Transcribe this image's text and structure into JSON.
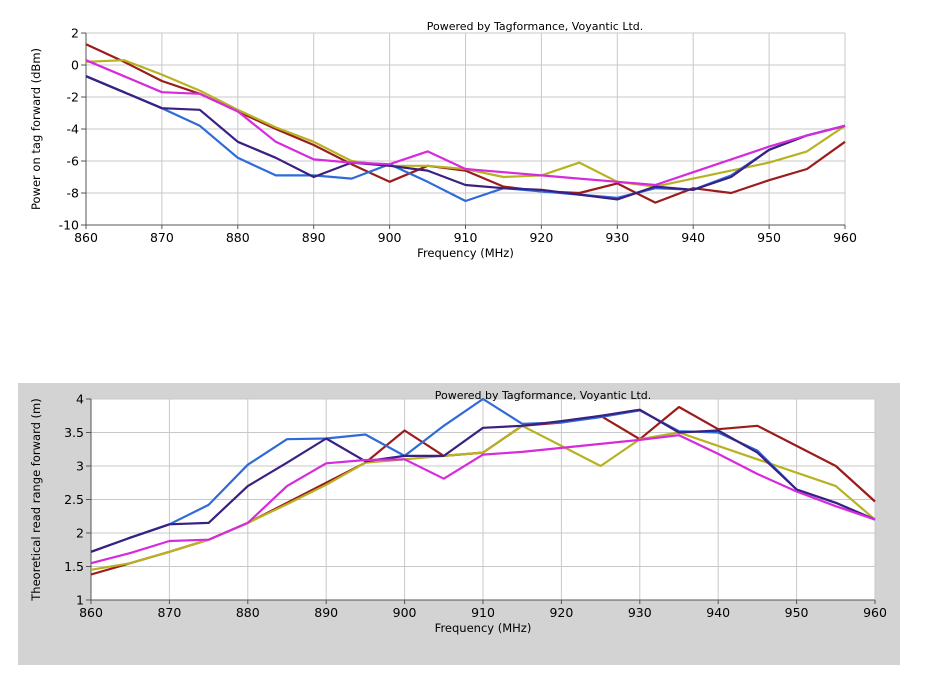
{
  "chart_data": [
    {
      "type": "line",
      "title": "Powered by Tagformance, Voyantic Ltd.",
      "xlabel": "Frequency (MHz)",
      "ylabel": "Power on tag forward (dBm)",
      "xlim": [
        860,
        960
      ],
      "ylim": [
        -10,
        2
      ],
      "xticks": [
        860,
        870,
        880,
        890,
        900,
        910,
        920,
        930,
        940,
        950,
        960
      ],
      "yticks": [
        -10,
        -8,
        -6,
        -4,
        -2,
        0,
        2
      ],
      "grid": true,
      "x": [
        860,
        865,
        870,
        875,
        880,
        885,
        890,
        895,
        900,
        905,
        910,
        915,
        920,
        925,
        930,
        935,
        940,
        945,
        950,
        955,
        960
      ],
      "series": [
        {
          "color": "#9c1c1c",
          "values": [
            1.3,
            0.2,
            -1.0,
            -1.8,
            -2.9,
            -4.0,
            -5.0,
            -6.2,
            -7.3,
            -6.3,
            -6.6,
            -7.6,
            -7.9,
            -8.0,
            -7.4,
            -8.6,
            -7.7,
            -8.0,
            -7.2,
            -6.5,
            -4.8
          ]
        },
        {
          "color": "#b8b220",
          "values": [
            0.2,
            0.3,
            -0.6,
            -1.6,
            -2.8,
            -3.9,
            -4.8,
            -6.0,
            -6.3,
            -6.3,
            -6.5,
            -7.0,
            -6.9,
            -6.1,
            -7.3,
            -7.6,
            -7.1,
            -6.6,
            -6.1,
            -5.4,
            -3.8
          ]
        },
        {
          "color": "#2f6bd8",
          "values": [
            -0.7,
            -1.7,
            -2.7,
            -3.8,
            -5.8,
            -6.9,
            -6.9,
            -7.1,
            -6.2,
            -7.3,
            -8.5,
            -7.7,
            -7.9,
            -8.1,
            -8.3,
            -7.7,
            -7.8,
            -6.9,
            -5.3,
            -4.4,
            -3.8
          ]
        },
        {
          "color": "#3a2080",
          "values": [
            -0.7,
            -1.7,
            -2.7,
            -2.8,
            -4.8,
            -5.8,
            -7.0,
            -6.1,
            -6.3,
            -6.6,
            -7.5,
            -7.7,
            -7.8,
            -8.1,
            -8.4,
            -7.6,
            -7.8,
            -7.0,
            -5.3,
            -4.4,
            -3.8
          ]
        },
        {
          "color": "#d62bdc",
          "values": [
            0.3,
            -0.7,
            -1.7,
            -1.8,
            -2.9,
            -4.8,
            -5.9,
            -6.1,
            -6.2,
            -5.4,
            -6.5,
            -6.7,
            -6.9,
            -7.1,
            -7.3,
            -7.5,
            -6.7,
            -5.9,
            -5.1,
            -4.4,
            -3.8
          ]
        }
      ]
    },
    {
      "type": "line",
      "title": "Powered by Tagformance, Voyantic Ltd.",
      "xlabel": "Frequency (MHz)",
      "ylabel": "Theoretical read range forward (m)",
      "xlim": [
        860,
        960
      ],
      "ylim": [
        1,
        4
      ],
      "xticks": [
        860,
        870,
        880,
        890,
        900,
        910,
        920,
        930,
        940,
        950,
        960
      ],
      "yticks": [
        1,
        1.5,
        2,
        2.5,
        3,
        3.5,
        4
      ],
      "grid": true,
      "x": [
        860,
        865,
        870,
        875,
        880,
        885,
        890,
        895,
        900,
        905,
        910,
        915,
        920,
        925,
        930,
        935,
        940,
        945,
        950,
        955,
        960
      ],
      "series": [
        {
          "color": "#9c1c1c",
          "values": [
            1.38,
            1.55,
            1.72,
            1.9,
            2.15,
            2.45,
            2.75,
            3.05,
            3.53,
            3.15,
            3.2,
            3.6,
            3.65,
            3.75,
            3.4,
            3.88,
            3.55,
            3.6,
            3.3,
            3.0,
            2.47
          ]
        },
        {
          "color": "#b8b220",
          "values": [
            1.45,
            1.55,
            1.72,
            1.9,
            2.15,
            2.43,
            2.72,
            3.05,
            3.1,
            3.15,
            3.2,
            3.6,
            3.3,
            3.0,
            3.4,
            3.5,
            3.3,
            3.1,
            2.9,
            2.7,
            2.2
          ]
        },
        {
          "color": "#2f6bd8",
          "values": [
            1.72,
            1.93,
            2.13,
            2.42,
            3.02,
            3.4,
            3.41,
            3.47,
            3.15,
            3.6,
            4.0,
            3.63,
            3.65,
            3.73,
            3.83,
            3.52,
            3.5,
            3.23,
            2.65,
            2.45,
            2.2
          ]
        },
        {
          "color": "#3a2080",
          "values": [
            1.72,
            1.93,
            2.13,
            2.15,
            2.7,
            3.05,
            3.41,
            3.07,
            3.15,
            3.15,
            3.57,
            3.6,
            3.67,
            3.75,
            3.84,
            3.5,
            3.53,
            3.2,
            2.65,
            2.45,
            2.2
          ]
        },
        {
          "color": "#d62bdc",
          "values": [
            1.55,
            1.7,
            1.88,
            1.9,
            2.15,
            2.7,
            3.04,
            3.09,
            3.1,
            2.81,
            3.17,
            3.21,
            3.27,
            3.33,
            3.39,
            3.46,
            3.18,
            2.88,
            2.62,
            2.4,
            2.2
          ]
        }
      ]
    }
  ]
}
